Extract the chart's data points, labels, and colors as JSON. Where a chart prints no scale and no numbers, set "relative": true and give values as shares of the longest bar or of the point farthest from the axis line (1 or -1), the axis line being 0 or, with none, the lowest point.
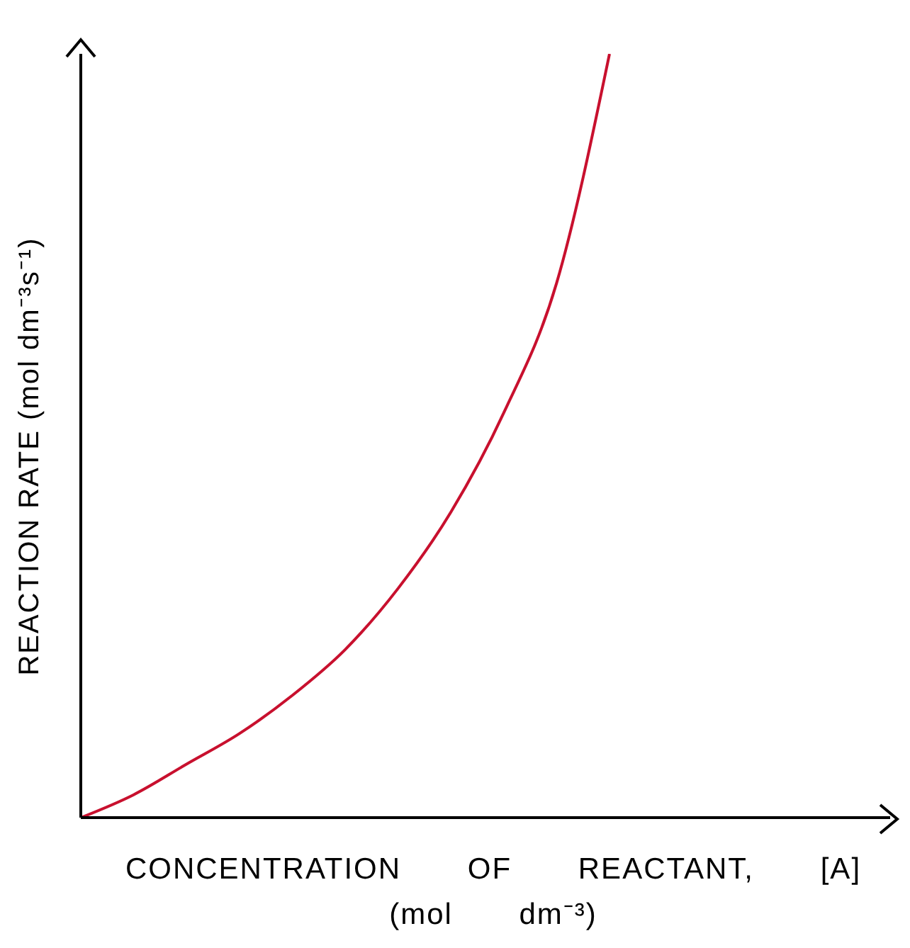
{
  "chart_data": {
    "type": "line",
    "xlabel": "CONCENTRATION OF REACTANT, [A] (mol dm⁻³)",
    "ylabel": "REACTION RATE (mol dm⁻³s⁻¹)",
    "relative": true,
    "categories": [
      null,
      null,
      null,
      null,
      null,
      null,
      null,
      null,
      null,
      null,
      null
    ],
    "values": [
      0,
      0.03,
      0.07,
      0.11,
      0.16,
      0.22,
      0.3,
      0.4,
      0.53,
      0.7,
      1
    ],
    "color": "#c8102e"
  }
}
